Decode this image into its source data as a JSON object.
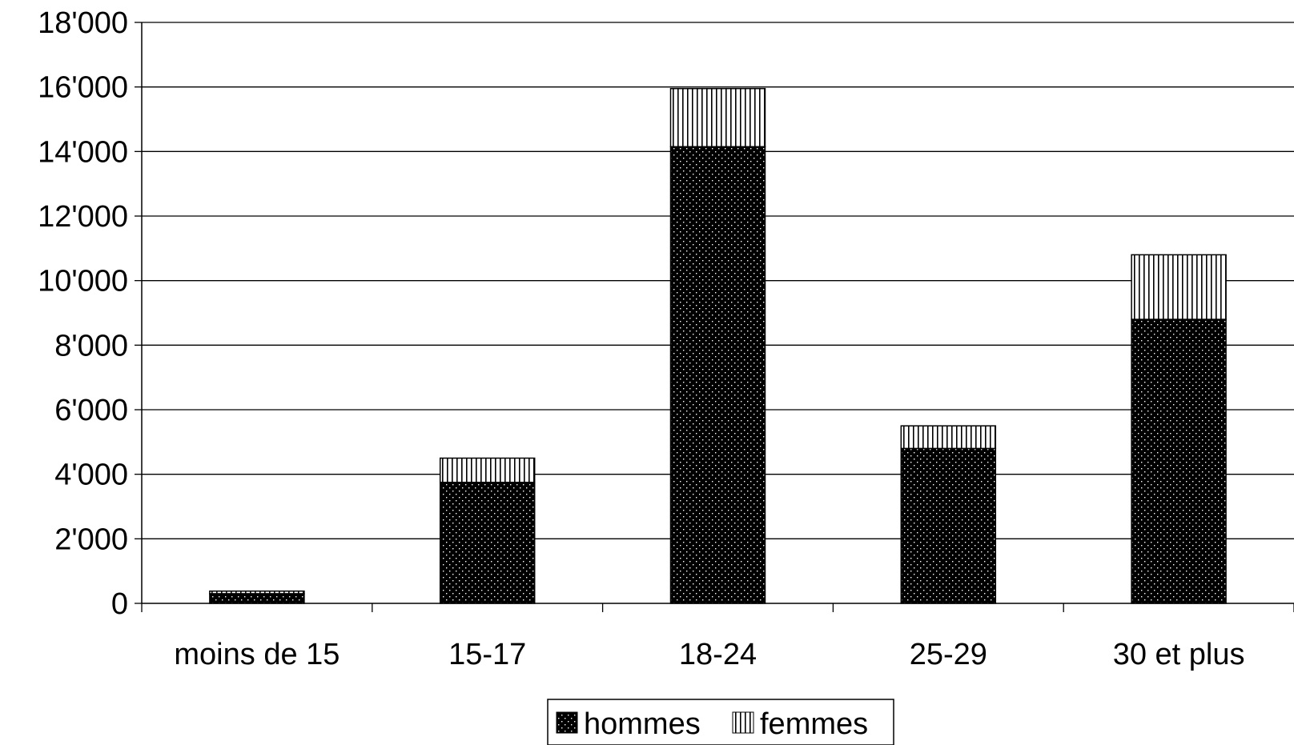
{
  "chart_data": {
    "type": "bar",
    "stacked": true,
    "title": "",
    "xlabel": "",
    "ylabel": "",
    "categories": [
      "moins de 15",
      "15-17",
      "18-24",
      "25-29",
      "30 et plus"
    ],
    "series": [
      {
        "name": "hommes",
        "values": [
          300,
          3750,
          14150,
          4800,
          8800
        ],
        "color": "#000000",
        "pattern": "dots"
      },
      {
        "name": "femmes",
        "values": [
          80,
          750,
          1800,
          700,
          2000
        ],
        "color": "#ffffff",
        "pattern": "vertical-stripes"
      }
    ],
    "ylim": [
      0,
      18000
    ],
    "yticks": [
      0,
      2000,
      4000,
      6000,
      8000,
      10000,
      12000,
      14000,
      16000,
      18000
    ],
    "ytick_labels": [
      "0",
      "2'000",
      "4'000",
      "6'000",
      "8'000",
      "10'000",
      "12'000",
      "14'000",
      "16'000",
      "18'000"
    ],
    "grid": true,
    "legend_position": "bottom-center"
  }
}
